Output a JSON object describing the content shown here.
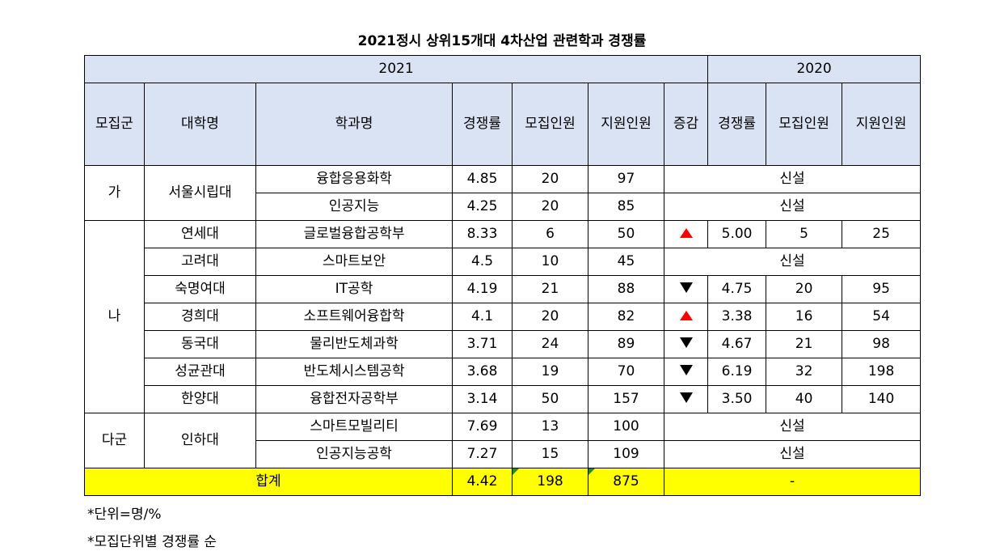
{
  "title": "2021정시 상위15개대 4차산업 관련학과 경쟁률",
  "year_2021": "2021",
  "year_2020": "2020",
  "columns": [
    "모집군",
    "대학명",
    "학과명",
    "경쟁률",
    "모집인원",
    "지원인원",
    "증감",
    "경쟁률",
    "모집인원",
    "지원인원"
  ],
  "groups": [
    "가",
    "나",
    "다군"
  ],
  "universities": {
    "seoul_city": "서울시립대",
    "yonsei": "연세대",
    "korea": "고려대",
    "sookmyung": "숙명여대",
    "kyunghee": "경희대",
    "dongguk": "동국대",
    "skku": "성균관대",
    "hanyang": "한양대",
    "inha": "인하대"
  },
  "rows": [
    {
      "dept": "융합응용화학",
      "rate": "4.85",
      "quota": "20",
      "applicants": "97",
      "trend": "",
      "rate_2020": "",
      "quota_2020": "",
      "applicants_2020": "",
      "new": "신설"
    },
    {
      "dept": "인공지능",
      "rate": "4.25",
      "quota": "20",
      "applicants": "85",
      "trend": "",
      "rate_2020": "",
      "quota_2020": "",
      "applicants_2020": "",
      "new": "신설"
    },
    {
      "dept": "글로벌융합공학부",
      "rate": "8.33",
      "quota": "6",
      "applicants": "50",
      "trend": "up",
      "rate_2020": "5.00",
      "quota_2020": "5",
      "applicants_2020": "25",
      "new": ""
    },
    {
      "dept": "스마트보안",
      "rate": "4.5",
      "quota": "10",
      "applicants": "45",
      "trend": "",
      "rate_2020": "",
      "quota_2020": "",
      "applicants_2020": "",
      "new": "신설"
    },
    {
      "dept": "IT공학",
      "rate": "4.19",
      "quota": "21",
      "applicants": "88",
      "trend": "down",
      "rate_2020": "4.75",
      "quota_2020": "20",
      "applicants_2020": "95",
      "new": ""
    },
    {
      "dept": "소프트웨어융합학",
      "rate": "4.1",
      "quota": "20",
      "applicants": "82",
      "trend": "up",
      "rate_2020": "3.38",
      "quota_2020": "16",
      "applicants_2020": "54",
      "new": ""
    },
    {
      "dept": "물리반도체과학",
      "rate": "3.71",
      "quota": "24",
      "applicants": "89",
      "trend": "down",
      "rate_2020": "4.67",
      "quota_2020": "21",
      "applicants_2020": "98",
      "new": ""
    },
    {
      "dept": "반도체시스템공학",
      "rate": "3.68",
      "quota": "19",
      "applicants": "70",
      "trend": "down",
      "rate_2020": "6.19",
      "quota_2020": "32",
      "applicants_2020": "198",
      "new": ""
    },
    {
      "dept": "융합전자공학부",
      "rate": "3.14",
      "quota": "50",
      "applicants": "157",
      "trend": "down",
      "rate_2020": "3.50",
      "quota_2020": "40",
      "applicants_2020": "140",
      "new": ""
    },
    {
      "dept": "스마트모빌리티",
      "rate": "7.69",
      "quota": "13",
      "applicants": "100",
      "trend": "",
      "rate_2020": "",
      "quota_2020": "",
      "applicants_2020": "",
      "new": "신설"
    },
    {
      "dept": "인공지능공학",
      "rate": "7.27",
      "quota": "15",
      "applicants": "109",
      "trend": "",
      "rate_2020": "",
      "quota_2020": "",
      "applicants_2020": "",
      "new": "신설"
    }
  ],
  "total": {
    "label": "합계",
    "rate": "4.42",
    "quota": "198",
    "applicants": "875",
    "rest": "-"
  },
  "notes": [
    "*단위=명/%",
    "*모집단위별 경쟁률 순"
  ],
  "colors": {
    "header_bg": "#dae3f3",
    "total_bg": "#ffff00",
    "up": "#ff0000",
    "down": "#000000"
  }
}
